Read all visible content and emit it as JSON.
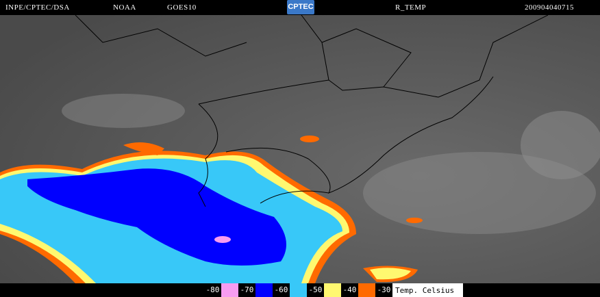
{
  "header": {
    "institution": "INPE/CPTEC/DSA",
    "agency": "NOAA",
    "satellite": "GOES10",
    "logo_text": "CPTEC",
    "product": "R_TEMP",
    "datetime": "200904040715"
  },
  "legend": {
    "items": [
      {
        "label": "-80",
        "color": "#f79cf0"
      },
      {
        "label": "-70",
        "color": "#0000ff"
      },
      {
        "label": "-60",
        "color": "#38c8f8"
      },
      {
        "label": "-50",
        "color": "#fff870"
      },
      {
        "label": "-40",
        "color": "#ff6a00"
      },
      {
        "label": "-30",
        "color": null
      }
    ],
    "unit": "Temp. Celsius"
  }
}
